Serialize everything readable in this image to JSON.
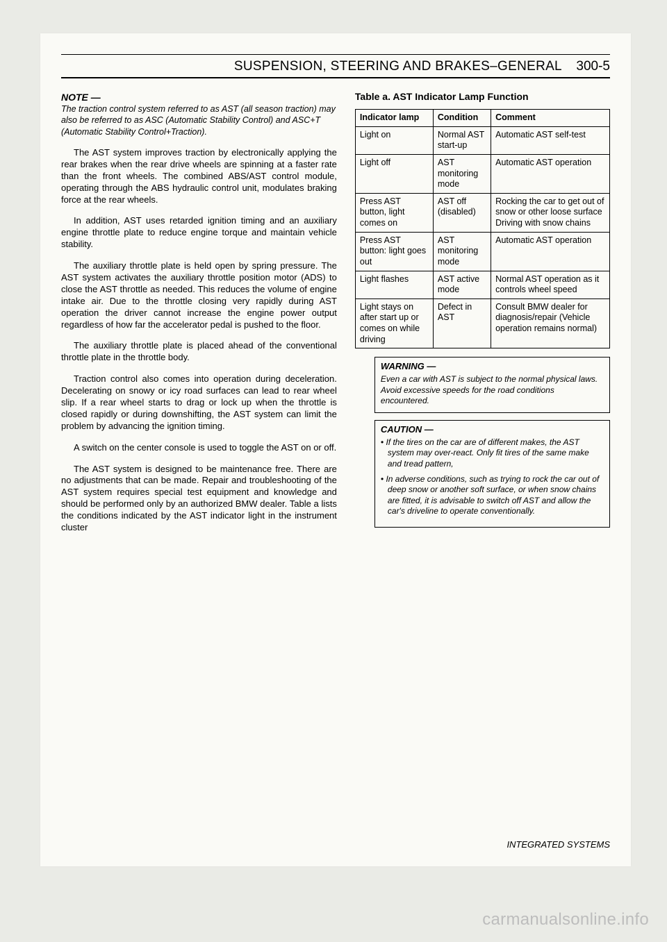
{
  "header": {
    "title": "SUSPENSION, STEERING AND BRAKES–GENERAL",
    "page": "300-5"
  },
  "left": {
    "note_head": "NOTE —",
    "note_body": "The traction control system referred to as AST (all season traction) may also be referred to as ASC (Automatic Stability Control) and ASC+T (Automatic Stability Control+Traction).",
    "paras": [
      "The AST system improves traction by electronically applying the rear brakes when the rear drive wheels are spinning at a faster rate than the front wheels. The combined ABS/AST control module, operating through the ABS hydraulic control unit, modulates braking force at the rear wheels.",
      "In addition, AST uses retarded ignition timing and an auxiliary engine throttle plate to reduce engine torque and maintain vehicle stability.",
      "The auxiliary throttle plate is held open by spring pressure. The AST system activates the auxiliary throttle position motor (ADS) to close the AST throttle as needed. This reduces the volume of engine intake air. Due to the throttle closing very rapidly during AST operation the driver cannot increase the engine power output regardless of how far the accelerator pedal is pushed to the floor.",
      "The auxiliary throttle plate is placed ahead of the conventional throttle plate in the throttle body.",
      "Traction control also comes into operation during deceleration. Decelerating on snowy or icy road surfaces can lead to rear wheel slip. If a rear wheel starts to drag or lock up when the throttle is closed rapidly or during downshifting, the AST system can limit the problem by advancing the ignition timing.",
      "A switch on the center console is used to toggle the AST on or off.",
      "The AST system is designed to be maintenance free. There are no adjustments that can be made. Repair and troubleshooting of the AST system requires special test equipment and knowledge and should be performed only by an authorized BMW dealer. Table a lists the conditions indicated by the AST indicator light in the instrument cluster"
    ]
  },
  "right": {
    "table_title": "Table a. AST Indicator Lamp Function",
    "headers": [
      "Indicator lamp",
      "Condition",
      "Comment"
    ],
    "rows": [
      [
        "Light on",
        "Normal AST start-up",
        "Automatic AST self-test"
      ],
      [
        "Light off",
        "AST monitoring mode",
        "Automatic AST operation"
      ],
      [
        "Press AST button, light comes on",
        "AST off (disabled)",
        "Rocking the car to get out of snow or other loose surface Driving with snow chains"
      ],
      [
        "Press AST button: light goes out",
        "AST monitoring mode",
        "Automatic AST operation"
      ],
      [
        "Light flashes",
        "AST active mode",
        "Normal AST operation as it controls wheel speed"
      ],
      [
        "Light stays on after start up or comes on while driving",
        "Defect in AST",
        "Consult BMW dealer for diagnosis/repair (Vehicle operation remains normal)"
      ]
    ],
    "warning": {
      "head": "WARNING —",
      "body": "Even a car with AST is subject to the normal physical laws. Avoid excessive speeds for the road conditions encountered."
    },
    "caution": {
      "head": "CAUTION —",
      "items": [
        "If the tires on the car are of different makes, the AST system may over-react. Only fit tires of the same make and tread pattern,",
        "In adverse conditions, such as trying to rock the car out of deep snow or another soft surface, or when snow chains are fitted, it is advisable to switch off AST and allow the car's driveline to operate conventionally."
      ]
    }
  },
  "footer": "INTEGRATED SYSTEMS",
  "watermark": "carmanualsonline.info"
}
